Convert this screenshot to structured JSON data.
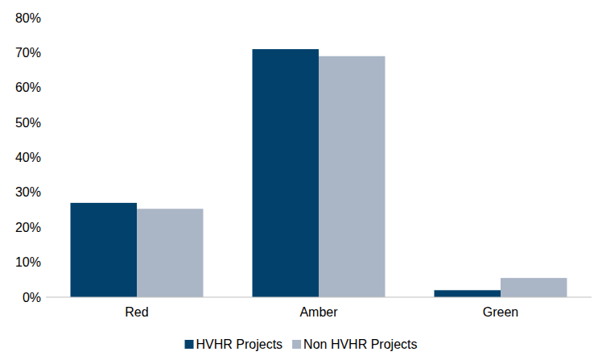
{
  "chart_data": {
    "type": "bar",
    "categories": [
      "Red",
      "Amber",
      "Green"
    ],
    "series": [
      {
        "name": "HVHR Projects",
        "color": "#01416b",
        "values": [
          27,
          71,
          2
        ]
      },
      {
        "name": "Non HVHR Projects",
        "color": "#aab5c6",
        "values": [
          25.3,
          69,
          5.5
        ]
      }
    ],
    "ylim": [
      0,
      80
    ],
    "yticks": [
      {
        "value": 0,
        "label": "0%"
      },
      {
        "value": 10,
        "label": "10%"
      },
      {
        "value": 20,
        "label": "20%"
      },
      {
        "value": 30,
        "label": "30%"
      },
      {
        "value": 40,
        "label": "40%"
      },
      {
        "value": 50,
        "label": "50%"
      },
      {
        "value": 60,
        "label": "60%"
      },
      {
        "value": 70,
        "label": "70%"
      },
      {
        "value": 80,
        "label": "80%"
      }
    ],
    "grid": false,
    "legend": "bottom"
  }
}
